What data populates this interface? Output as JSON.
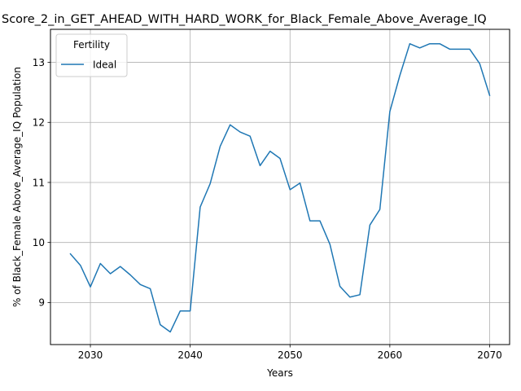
{
  "chart_data": {
    "type": "line",
    "title": "Score_2_in_GET_AHEAD_WITH_HARD_WORK_for_Black_Female_Above_Average_IQ",
    "xlabel": "Years",
    "ylabel": "% of Black_Female Above_Average_IQ Population",
    "xlim": [
      2026,
      2072
    ],
    "ylim": [
      8.3,
      13.55
    ],
    "xticks": [
      2030,
      2040,
      2050,
      2060,
      2070
    ],
    "yticks": [
      9,
      10,
      11,
      12,
      13
    ],
    "grid": true,
    "legend": {
      "title": "Fertility",
      "position": "top-left"
    },
    "series": [
      {
        "name": "Ideal",
        "color": "#1f77b4",
        "x": [
          2028,
          2029,
          2030,
          2031,
          2032,
          2033,
          2034,
          2035,
          2036,
          2037,
          2038,
          2039,
          2040,
          2041,
          2042,
          2043,
          2044,
          2045,
          2046,
          2047,
          2048,
          2049,
          2050,
          2051,
          2052,
          2053,
          2054,
          2055,
          2056,
          2057,
          2058,
          2059,
          2060,
          2061,
          2062,
          2063,
          2064,
          2065,
          2066,
          2067,
          2068,
          2069,
          2070
        ],
        "y": [
          9.81,
          9.62,
          9.26,
          9.65,
          9.48,
          9.6,
          9.46,
          9.3,
          9.23,
          8.63,
          8.51,
          8.86,
          8.86,
          10.59,
          10.98,
          11.6,
          11.96,
          11.84,
          11.77,
          11.28,
          11.52,
          11.4,
          10.88,
          10.99,
          10.36,
          10.36,
          9.97,
          9.27,
          9.09,
          9.13,
          10.29,
          10.55,
          12.18,
          12.78,
          13.31,
          13.24,
          13.31,
          13.31,
          13.22,
          13.22,
          13.22,
          12.98,
          12.45
        ]
      }
    ]
  }
}
